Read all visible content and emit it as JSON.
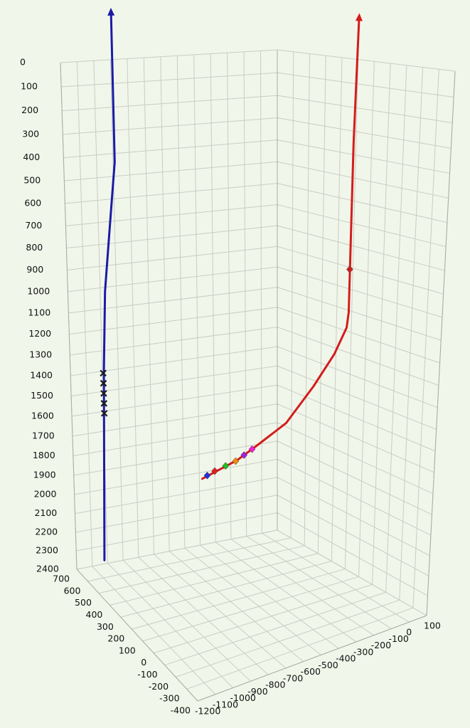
{
  "chart_data": {
    "type": "line3d",
    "xlim": [
      -1200,
      100
    ],
    "ylim": [
      -400,
      700
    ],
    "zlim": [
      0,
      2400
    ],
    "xticks": [
      100,
      0,
      -100,
      -200,
      -300,
      -400,
      -500,
      -600,
      -700,
      -800,
      -900,
      -1000,
      -1100,
      -1200
    ],
    "yticks": [
      700,
      600,
      500,
      400,
      300,
      200,
      100,
      0,
      -100,
      -200,
      -300,
      -400
    ],
    "zticks": [
      0,
      100,
      200,
      300,
      400,
      500,
      600,
      700,
      800,
      900,
      1000,
      1100,
      1200,
      1300,
      1400,
      1500,
      1600,
      1700,
      1800,
      1900,
      2000,
      2100,
      2200,
      2300,
      2400
    ],
    "zreversed": true,
    "grid": true,
    "series": [
      {
        "color": "#1b1ba6",
        "x": [
          -890,
          -890,
          -930,
          -970,
          -990,
          -1020
        ],
        "y": [
          700,
          700,
          700,
          700,
          700,
          700
        ],
        "z": [
          -195,
          438,
          724,
          1019,
          1395,
          2380
        ]
      },
      {
        "color": "#d41c1c",
        "x": [
          100,
          100,
          100,
          90,
          20,
          -100,
          -260,
          -430,
          -550,
          -760
        ],
        "y": [
          200,
          215,
          220,
          220,
          220,
          220,
          220,
          220,
          220,
          220
        ],
        "z": [
          -170,
          350,
          1110,
          1180,
          1295,
          1430,
          1580,
          1656,
          1707,
          1758
        ]
      }
    ],
    "markers": [
      {
        "color": "#1a1a1a",
        "shape": "x",
        "x": -995,
        "y": 700,
        "z": 1410
      },
      {
        "color": "#1a1a1a",
        "shape": "x",
        "x": -995,
        "y": 700,
        "z": 1460
      },
      {
        "color": "#1a1a1a",
        "shape": "x",
        "x": -995,
        "y": 700,
        "z": 1510
      },
      {
        "color": "#1a1a1a",
        "shape": "x",
        "x": -995,
        "y": 700,
        "z": 1560
      },
      {
        "color": "#1a1a1a",
        "shape": "x",
        "x": -995,
        "y": 700,
        "z": 1610
      },
      {
        "color": "#d41c1c",
        "shape": "diamond",
        "x": 100,
        "y": 220,
        "z": 910
      },
      {
        "color": "#2030e0",
        "shape": "diamond",
        "x": -730,
        "y": 220,
        "z": 1748
      },
      {
        "color": "#e02020",
        "shape": "diamond",
        "x": -685,
        "y": 220,
        "z": 1735
      },
      {
        "color": "#20c020",
        "shape": "diamond",
        "x": -620,
        "y": 220,
        "z": 1722
      },
      {
        "color": "#f08c10",
        "shape": "diamond",
        "x": -560,
        "y": 220,
        "z": 1710
      },
      {
        "color": "#a020e0",
        "shape": "diamond",
        "x": -510,
        "y": 220,
        "z": 1690
      },
      {
        "color": "#f020d0",
        "shape": "diamond",
        "x": -462,
        "y": 220,
        "z": 1670
      }
    ]
  }
}
